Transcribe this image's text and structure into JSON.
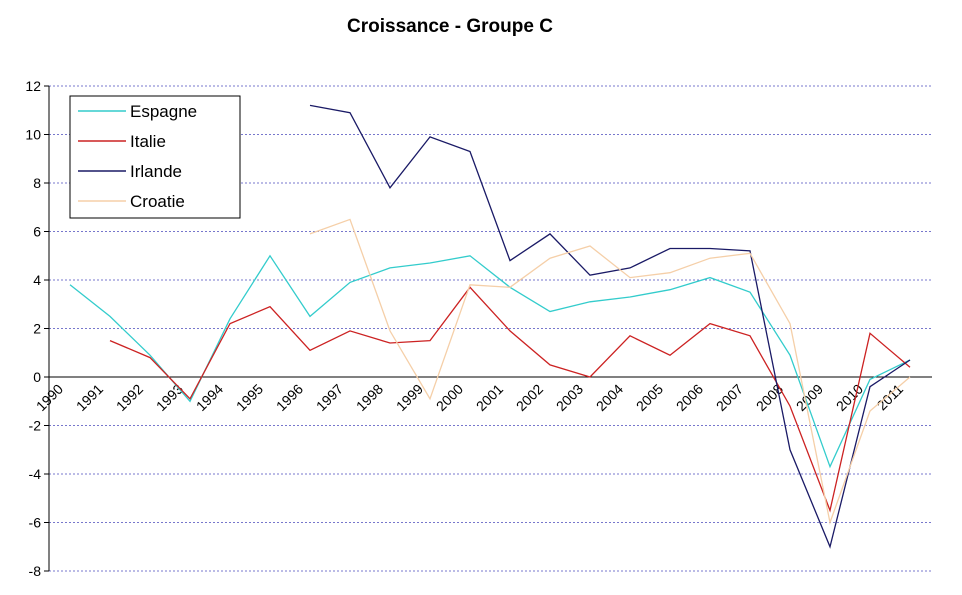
{
  "chart_data": {
    "type": "line",
    "title": "Croissance - Groupe C",
    "xlabel": "",
    "ylabel": "",
    "ylim": [
      -8,
      12
    ],
    "ytick_step": 2,
    "grid": true,
    "legend_position": "top-left",
    "categories": [
      "1990",
      "1991",
      "1992",
      "1993",
      "1994",
      "1995",
      "1996",
      "1997",
      "1998",
      "1999",
      "2000",
      "2001",
      "2002",
      "2003",
      "2004",
      "2005",
      "2006",
      "2007",
      "2008",
      "2009",
      "2010",
      "2011"
    ],
    "series": [
      {
        "name": "Espagne",
        "color": "#33CCCC",
        "values": [
          3.8,
          2.5,
          0.9,
          -1.0,
          2.4,
          5.0,
          2.5,
          3.9,
          4.5,
          4.7,
          5.0,
          3.7,
          2.7,
          3.1,
          3.3,
          3.6,
          4.1,
          3.5,
          0.9,
          -3.7,
          -0.1,
          0.7
        ]
      },
      {
        "name": "Italie",
        "color": "#CC2222",
        "values": [
          null,
          1.5,
          0.8,
          -0.9,
          2.2,
          2.9,
          1.1,
          1.9,
          1.4,
          1.5,
          3.7,
          1.9,
          0.5,
          0.0,
          1.7,
          0.9,
          2.2,
          1.7,
          -1.2,
          -5.5,
          1.8,
          0.4
        ]
      },
      {
        "name": "Irlande",
        "color": "#1A1A66",
        "values": [
          null,
          null,
          null,
          null,
          null,
          null,
          11.2,
          10.9,
          7.8,
          9.9,
          9.3,
          4.8,
          5.9,
          4.2,
          4.5,
          5.3,
          5.3,
          5.2,
          -3.0,
          -7.0,
          -0.4,
          0.7
        ]
      },
      {
        "name": "Croatie",
        "color": "#F5CFA8",
        "values": [
          null,
          null,
          null,
          null,
          null,
          null,
          5.9,
          6.5,
          1.9,
          -0.9,
          3.8,
          3.7,
          4.9,
          5.4,
          4.1,
          4.3,
          4.9,
          5.1,
          2.2,
          -6.0,
          -1.4,
          0.0
        ]
      }
    ]
  }
}
